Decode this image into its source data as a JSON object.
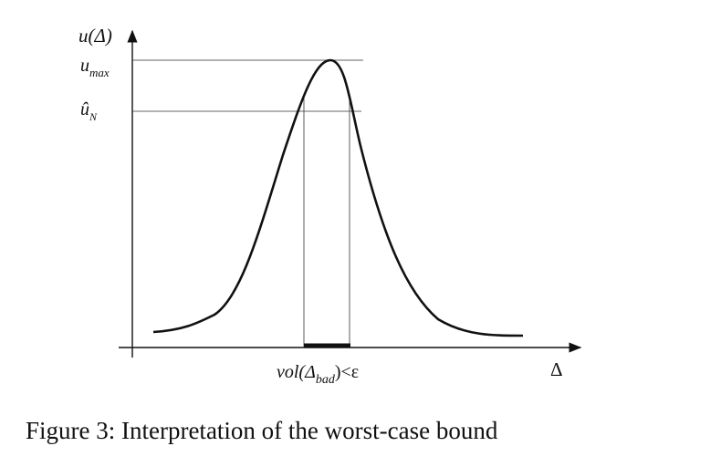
{
  "figure": {
    "y_axis_label": "u(Δ)",
    "u_max": {
      "base": "u",
      "sub": "max"
    },
    "u_hat_n": {
      "base": "û",
      "sub": "N"
    },
    "interval_label": {
      "prefix": "vol(Δ",
      "sub": "bad",
      "suffix": ")<ε"
    },
    "x_axis_label": "Δ",
    "caption": "Figure 3: Interpretation of the worst-case bound"
  }
}
